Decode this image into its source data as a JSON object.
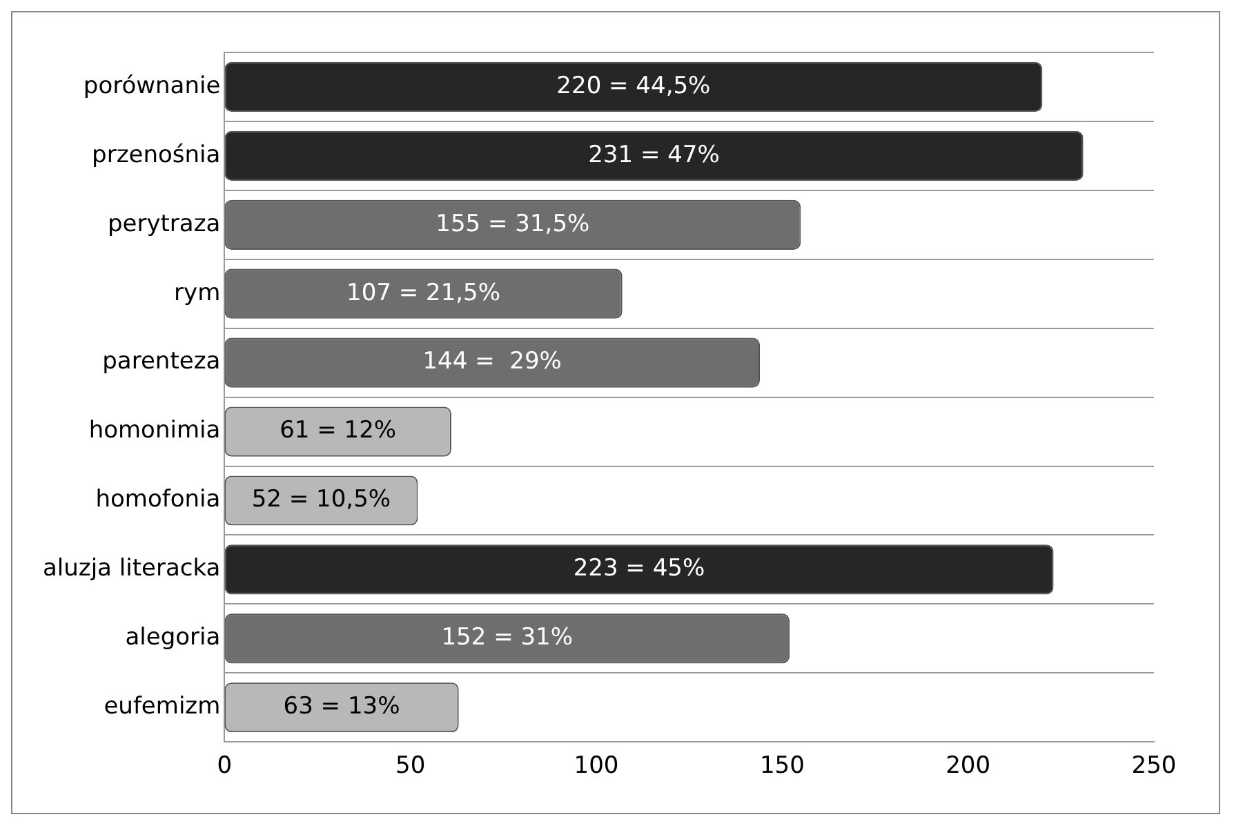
{
  "chart_data": {
    "type": "bar",
    "orientation": "horizontal",
    "categories": [
      "porównanie",
      "przenośnia",
      "perytraza",
      "rym",
      "parenteza",
      "homonimia",
      "homofonia",
      "aluzja literacka",
      "alegoria",
      "eufemizm"
    ],
    "values": [
      220,
      231,
      155,
      107,
      144,
      61,
      52,
      223,
      152,
      63
    ],
    "colors": [
      "#262626",
      "#262626",
      "#6e6e6e",
      "#6e6e6e",
      "#6e6e6e",
      "#b8b8b8",
      "#b8b8b8",
      "#262626",
      "#6e6e6e",
      "#b8b8b8"
    ],
    "value_labels": [
      "220 = 44,5%",
      "231 = 47%",
      "155 = 31,5%",
      "107 = 21,5%",
      "144 =  29%",
      "61 = 12%",
      "52 = 10,5%",
      "223 = 45%",
      "152 = 31%",
      "63 = 13%"
    ],
    "xlim": [
      0,
      250
    ],
    "xticks": [
      0,
      50,
      100,
      150,
      200,
      250
    ],
    "grid": "y",
    "legend": false
  }
}
